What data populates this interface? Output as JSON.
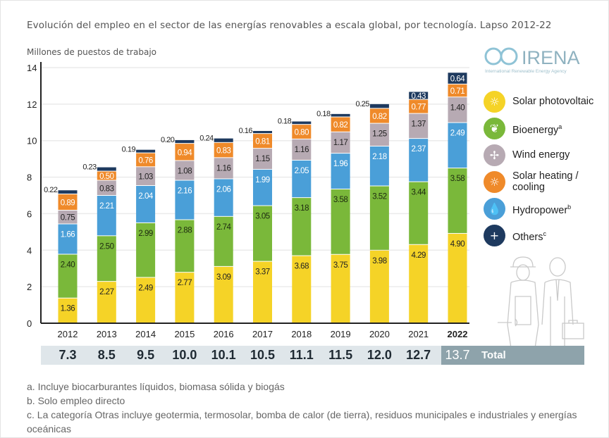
{
  "chart_data": {
    "type": "bar",
    "stacked": true,
    "title": "Evolución del empleo en el sector de las energías renovables a escala global, por tecnología. Lapso 2012-22",
    "ylabel": "Millones de puestos de trabajo",
    "xlabel": "",
    "ylim": [
      0,
      14
    ],
    "yticks": [
      0,
      2,
      4,
      6,
      8,
      10,
      12,
      14
    ],
    "grid": true,
    "legend_position": "right",
    "categories": [
      "2012",
      "2013",
      "2014",
      "2015",
      "2016",
      "2017",
      "2018",
      "2019",
      "2020",
      "2021",
      "2022"
    ],
    "series": [
      {
        "name": "Solar photovoltaic",
        "sup": "",
        "color": "#f5d327",
        "label_color": "#222",
        "icon": "sun-icon",
        "values": [
          1.36,
          2.27,
          2.49,
          2.77,
          3.09,
          3.37,
          3.68,
          3.75,
          3.98,
          4.29,
          4.9
        ]
      },
      {
        "name": "Bioenergy",
        "sup": "a",
        "color": "#7ab83a",
        "label_color": "#1d2a10",
        "icon": "leaf-icon",
        "values": [
          2.4,
          2.5,
          2.99,
          2.88,
          2.74,
          3.05,
          3.18,
          3.58,
          3.52,
          3.44,
          3.58
        ]
      },
      {
        "name": "Hydropower",
        "sup": "b",
        "color": "#4a9fd8",
        "label_color": "#ffffff",
        "icon": "water-drop-icon",
        "values": [
          1.66,
          2.21,
          2.04,
          2.16,
          2.06,
          1.99,
          2.05,
          1.96,
          2.18,
          2.37,
          2.49
        ]
      },
      {
        "name": "Wind energy",
        "sup": "",
        "color": "#b7aab3",
        "label_color": "#222",
        "icon": "wind-turbine-icon",
        "values": [
          0.75,
          0.83,
          1.03,
          1.08,
          1.16,
          1.15,
          1.16,
          1.17,
          1.25,
          1.37,
          1.4
        ]
      },
      {
        "name": "Solar heating / cooling",
        "sup": "",
        "color": "#ef8a2a",
        "label_color": "#ffffff",
        "icon": "sun-icon",
        "values": [
          0.89,
          0.5,
          0.76,
          0.94,
          0.83,
          0.81,
          0.8,
          0.82,
          0.82,
          0.77,
          0.71
        ]
      },
      {
        "name": "Others",
        "sup": "c",
        "color": "#1e3a5f",
        "label_color": "#ffffff",
        "icon": "plus-icon",
        "values": [
          0.22,
          0.23,
          0.19,
          0.2,
          0.24,
          0.16,
          0.18,
          0.18,
          0.25,
          0.43,
          0.64
        ]
      }
    ],
    "totals": [
      "7.3",
      "8.5",
      "9.5",
      "10.0",
      "10.1",
      "10.5",
      "11.1",
      "11.5",
      "12.0",
      "12.7",
      "13.7"
    ],
    "totals_label": "Total",
    "highlight_year": "2022"
  },
  "legend_order": [
    0,
    1,
    3,
    4,
    2,
    5
  ],
  "logo": {
    "name": "IRENA",
    "subtitle": "International Renewable Energy Agency"
  },
  "footnotes": [
    "a. Incluye biocarburantes líquidos, biomasa sólida y biogás",
    "b. Solo empleo directo",
    "c. La categoría Otras incluye geotermia, termosolar, bomba de calor (de tierra), residuos municipales e industriales y energías oceánicas"
  ]
}
